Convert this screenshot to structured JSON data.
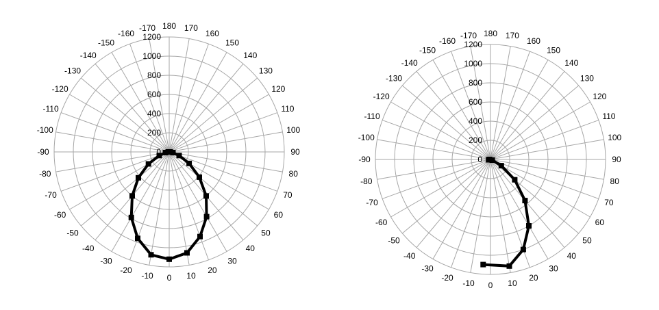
{
  "chart_data": [
    {
      "type": "polar-line",
      "title": "",
      "angle_unit": "degrees",
      "angle_ticks": [
        0,
        10,
        20,
        30,
        40,
        50,
        60,
        70,
        80,
        90,
        100,
        110,
        120,
        130,
        140,
        150,
        160,
        170,
        180,
        -170,
        -160,
        -150,
        -140,
        -130,
        -120,
        -110,
        -100,
        -90,
        -80,
        -70,
        -60,
        -50,
        -40,
        -30,
        -20,
        -10
      ],
      "angle_labels": [
        "0",
        "10",
        "20",
        "30",
        "40",
        "50",
        "60",
        "70",
        "80",
        "90",
        "100",
        "110",
        "120",
        "130",
        "140",
        "150",
        "160",
        "170",
        "180",
        "-170",
        "-160",
        "-150",
        "-140",
        "-130",
        "-120",
        "-110",
        "-100",
        "-90",
        "-80",
        "-70",
        "-60",
        "-50",
        "-40",
        "-30",
        "-20",
        "-10"
      ],
      "zero_direction": "bottom",
      "angle_direction": "counterclockwise",
      "radial_range": [
        0,
        1200
      ],
      "radial_ticks": [
        0,
        200,
        400,
        600,
        800,
        1000,
        1200
      ],
      "radial_labels": [
        "0",
        "200",
        "400",
        "600",
        "800",
        "1000",
        "1200"
      ],
      "grid": true,
      "legend": "none",
      "series": [
        {
          "color": "#000000",
          "points": [
            {
              "angle": -90,
              "r": 10
            },
            {
              "angle": -80,
              "r": 40
            },
            {
              "angle": -70,
              "r": 110
            },
            {
              "angle": -60,
              "r": 250
            },
            {
              "angle": -50,
              "r": 420
            },
            {
              "angle": -40,
              "r": 600
            },
            {
              "angle": -30,
              "r": 790
            },
            {
              "angle": -20,
              "r": 960
            },
            {
              "angle": -10,
              "r": 1090
            },
            {
              "angle": 0,
              "r": 1120
            },
            {
              "angle": 10,
              "r": 1070
            },
            {
              "angle": 20,
              "r": 940
            },
            {
              "angle": 30,
              "r": 780
            },
            {
              "angle": 40,
              "r": 600
            },
            {
              "angle": 50,
              "r": 410
            },
            {
              "angle": 60,
              "r": 240
            },
            {
              "angle": 70,
              "r": 110
            },
            {
              "angle": 80,
              "r": 40
            },
            {
              "angle": 90,
              "r": 10
            }
          ]
        }
      ]
    },
    {
      "type": "polar-line",
      "title": "",
      "angle_unit": "degrees",
      "angle_ticks": [
        0,
        10,
        20,
        30,
        40,
        50,
        60,
        70,
        80,
        90,
        100,
        110,
        120,
        130,
        140,
        150,
        160,
        170,
        180,
        -170,
        -160,
        -150,
        -140,
        -130,
        -120,
        -110,
        -100,
        -90,
        -80,
        -70,
        -60,
        -50,
        -40,
        -30,
        -20,
        -10
      ],
      "angle_labels": [
        "0",
        "10",
        "20",
        "30",
        "40",
        "50",
        "60",
        "70",
        "80",
        "90",
        "100",
        "110",
        "120",
        "130",
        "140",
        "150",
        "160",
        "170",
        "180",
        "-170",
        "-160",
        "-150",
        "-140",
        "-130",
        "-120",
        "-110",
        "-100",
        "-90",
        "-80",
        "-70",
        "-60",
        "-50",
        "-40",
        "-30",
        "-20",
        "-10"
      ],
      "zero_direction": "bottom",
      "angle_direction": "counterclockwise",
      "radial_range": [
        0,
        1200
      ],
      "radial_ticks": [
        0,
        200,
        400,
        600,
        800,
        1000,
        1200
      ],
      "radial_labels": [
        "0",
        "200",
        "400",
        "600",
        "800",
        "1000",
        "1200"
      ],
      "grid": true,
      "legend": "none",
      "series": [
        {
          "color": "#000000",
          "points": [
            {
              "angle": -90,
              "r": 10
            },
            {
              "angle": -80,
              "r": 20
            },
            {
              "angle": 70,
              "r": 20
            },
            {
              "angle": 60,
              "r": 130
            },
            {
              "angle": 50,
              "r": 330
            },
            {
              "angle": 40,
              "r": 560
            },
            {
              "angle": 30,
              "r": 800
            },
            {
              "angle": 20,
              "r": 1000
            },
            {
              "angle": 10,
              "r": 1130
            },
            {
              "angle": -4,
              "r": 1100
            }
          ]
        }
      ]
    }
  ]
}
